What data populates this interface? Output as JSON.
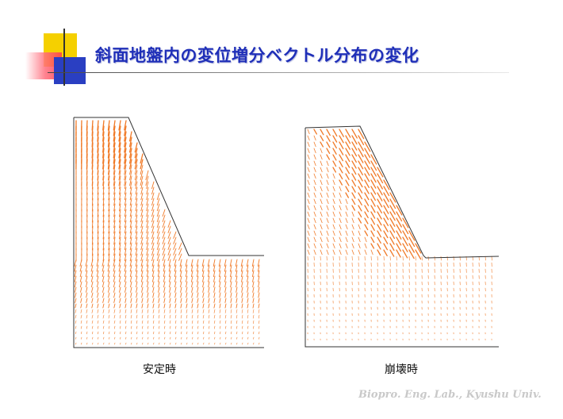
{
  "slide": {
    "title": "斜面地盤内の変位増分ベクトル分布の変化",
    "credit": "Biopro. Eng. Lab., Kyushu Univ.",
    "accent_color": "#1f2fb8",
    "vector_color": "#f07a28"
  },
  "panels": [
    {
      "id": "stable",
      "caption": "安定時"
    },
    {
      "id": "collapse",
      "caption": "崩壊時"
    }
  ]
}
